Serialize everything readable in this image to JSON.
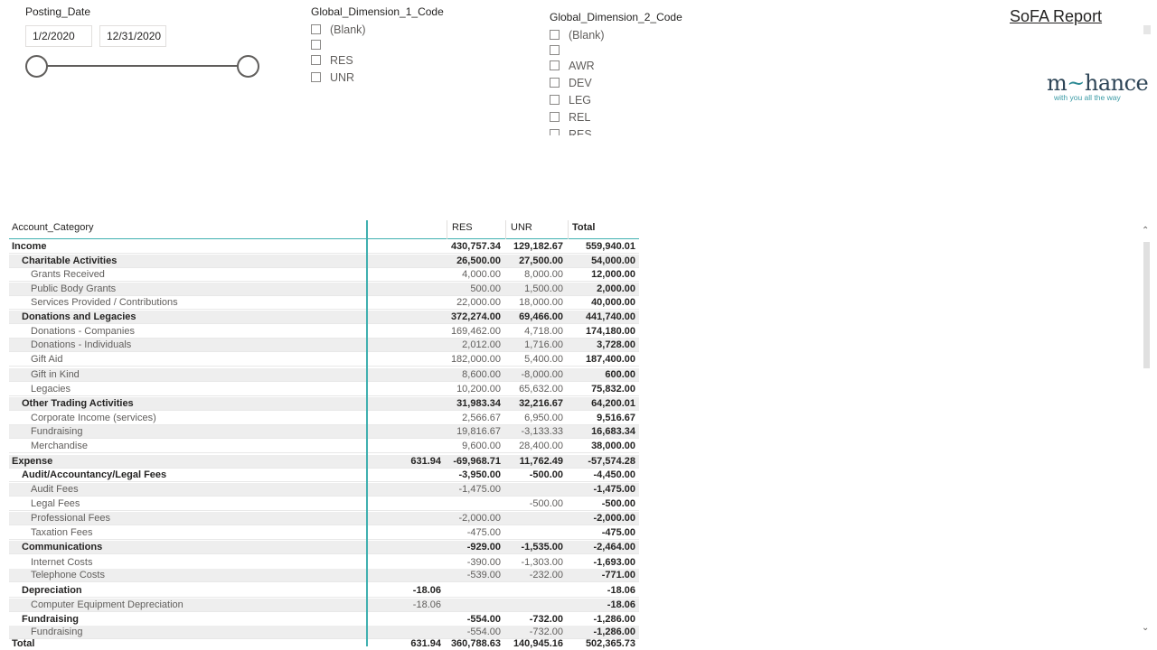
{
  "posting_date": {
    "title": "Posting_Date",
    "start": "1/2/2020",
    "end": "12/31/2020"
  },
  "gd1": {
    "title": "Global_Dimension_1_Code",
    "items": [
      "(Blank)",
      "",
      "RES",
      "UNR"
    ]
  },
  "gd2": {
    "title": "Global_Dimension_2_Code",
    "items": [
      "(Blank)",
      "",
      "AWR",
      "DEV",
      "LEG",
      "REL",
      "RES"
    ]
  },
  "report_link": "SoFA Report",
  "logo": {
    "main_a": "m",
    "tilde": "~",
    "main_b": "hance",
    "tagline": "with you all the way"
  },
  "matrix": {
    "headers": [
      "Account_Category",
      "",
      "RES",
      "UNR",
      "Total"
    ],
    "rows": [
      {
        "label": "Income",
        "level": 0,
        "c0": "",
        "c1": "430,757.34",
        "c2": "129,182.67",
        "c3": "559,940.01"
      },
      {
        "label": "Charitable Activities",
        "level": 1,
        "c0": "",
        "c1": "26,500.00",
        "c2": "27,500.00",
        "c3": "54,000.00"
      },
      {
        "label": "Grants Received",
        "level": 2,
        "c0": "",
        "c1": "4,000.00",
        "c2": "8,000.00",
        "c3": "12,000.00"
      },
      {
        "label": "Public Body Grants",
        "level": 2,
        "c0": "",
        "c1": "500.00",
        "c2": "1,500.00",
        "c3": "2,000.00"
      },
      {
        "label": "Services Provided / Contributions",
        "level": 2,
        "c0": "",
        "c1": "22,000.00",
        "c2": "18,000.00",
        "c3": "40,000.00"
      },
      {
        "label": "Donations and Legacies",
        "level": 1,
        "c0": "",
        "c1": "372,274.00",
        "c2": "69,466.00",
        "c3": "441,740.00"
      },
      {
        "label": "Donations - Companies",
        "level": 2,
        "c0": "",
        "c1": "169,462.00",
        "c2": "4,718.00",
        "c3": "174,180.00"
      },
      {
        "label": "Donations - Individuals",
        "level": 2,
        "c0": "",
        "c1": "2,012.00",
        "c2": "1,716.00",
        "c3": "3,728.00"
      },
      {
        "label": "Gift Aid",
        "level": 2,
        "c0": "",
        "c1": "182,000.00",
        "c2": "5,400.00",
        "c3": "187,400.00"
      },
      {
        "label": "Gift in Kind",
        "level": 2,
        "c0": "",
        "c1": "8,600.00",
        "c2": "-8,000.00",
        "c3": "600.00"
      },
      {
        "label": "Legacies",
        "level": 2,
        "c0": "",
        "c1": "10,200.00",
        "c2": "65,632.00",
        "c3": "75,832.00"
      },
      {
        "label": "Other Trading Activities",
        "level": 1,
        "c0": "",
        "c1": "31,983.34",
        "c2": "32,216.67",
        "c3": "64,200.01"
      },
      {
        "label": "Corporate Income (services)",
        "level": 2,
        "c0": "",
        "c1": "2,566.67",
        "c2": "6,950.00",
        "c3": "9,516.67"
      },
      {
        "label": "Fundraising",
        "level": 2,
        "c0": "",
        "c1": "19,816.67",
        "c2": "-3,133.33",
        "c3": "16,683.34"
      },
      {
        "label": "Merchandise",
        "level": 2,
        "c0": "",
        "c1": "9,600.00",
        "c2": "28,400.00",
        "c3": "38,000.00"
      },
      {
        "label": "Expense",
        "level": 0,
        "c0": "631.94",
        "c1": "-69,968.71",
        "c2": "11,762.49",
        "c3": "-57,574.28"
      },
      {
        "label": "Audit/Accountancy/Legal Fees",
        "level": 1,
        "c0": "",
        "c1": "-3,950.00",
        "c2": "-500.00",
        "c3": "-4,450.00"
      },
      {
        "label": "Audit Fees",
        "level": 2,
        "c0": "",
        "c1": "-1,475.00",
        "c2": "",
        "c3": "-1,475.00"
      },
      {
        "label": "Legal Fees",
        "level": 2,
        "c0": "",
        "c1": "",
        "c2": "-500.00",
        "c3": "-500.00"
      },
      {
        "label": "Professional Fees",
        "level": 2,
        "c0": "",
        "c1": "-2,000.00",
        "c2": "",
        "c3": "-2,000.00"
      },
      {
        "label": "Taxation Fees",
        "level": 2,
        "c0": "",
        "c1": "-475.00",
        "c2": "",
        "c3": "-475.00"
      },
      {
        "label": "Communications",
        "level": 1,
        "c0": "",
        "c1": "-929.00",
        "c2": "-1,535.00",
        "c3": "-2,464.00"
      },
      {
        "label": "Internet Costs",
        "level": 2,
        "c0": "",
        "c1": "-390.00",
        "c2": "-1,303.00",
        "c3": "-1,693.00"
      },
      {
        "label": "Telephone Costs",
        "level": 2,
        "c0": "",
        "c1": "-539.00",
        "c2": "-232.00",
        "c3": "-771.00"
      },
      {
        "label": "Depreciation",
        "level": 1,
        "c0": "-18.06",
        "c1": "",
        "c2": "",
        "c3": "-18.06"
      },
      {
        "label": "Computer Equipment Depreciation",
        "level": 2,
        "c0": "-18.06",
        "c1": "",
        "c2": "",
        "c3": "-18.06"
      },
      {
        "label": "Fundraising",
        "level": 1,
        "c0": "",
        "c1": "-554.00",
        "c2": "-732.00",
        "c3": "-1,286.00"
      },
      {
        "label": "Fundraising",
        "level": 2,
        "c0": "",
        "c1": "-554.00",
        "c2": "-732.00",
        "c3": "-1,286.00"
      }
    ],
    "total": {
      "label": "Total",
      "c0": "631.94",
      "c1": "360,788.63",
      "c2": "140,945.16",
      "c3": "502,365.73"
    }
  }
}
